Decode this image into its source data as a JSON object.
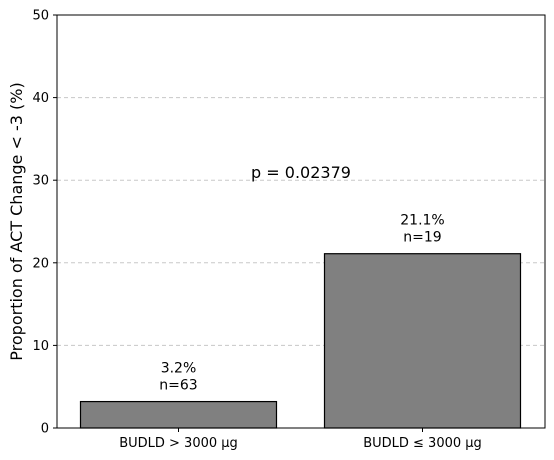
{
  "chart_data": {
    "type": "bar",
    "categories": [
      "BUDLD > 3000 µg",
      "BUDLD ≤ 3000 µg"
    ],
    "values": [
      3.2,
      21.1
    ],
    "bar_labels": [
      {
        "percent": "3.2%",
        "n": "n=63"
      },
      {
        "percent": "21.1%",
        "n": "n=19"
      }
    ],
    "ylabel": "Proportion of ACT Change < -3 (%)",
    "xlabel": "",
    "ylim": [
      0,
      50
    ],
    "yticks": [
      0,
      10,
      20,
      30,
      40,
      50
    ],
    "annotation": {
      "text": "p = 0.02379",
      "y": 31
    },
    "grid": "horizontal dashed",
    "colors": {
      "bar_fill": "#808080",
      "bar_edge": "#000000",
      "grid": "#c8c8c8"
    }
  }
}
